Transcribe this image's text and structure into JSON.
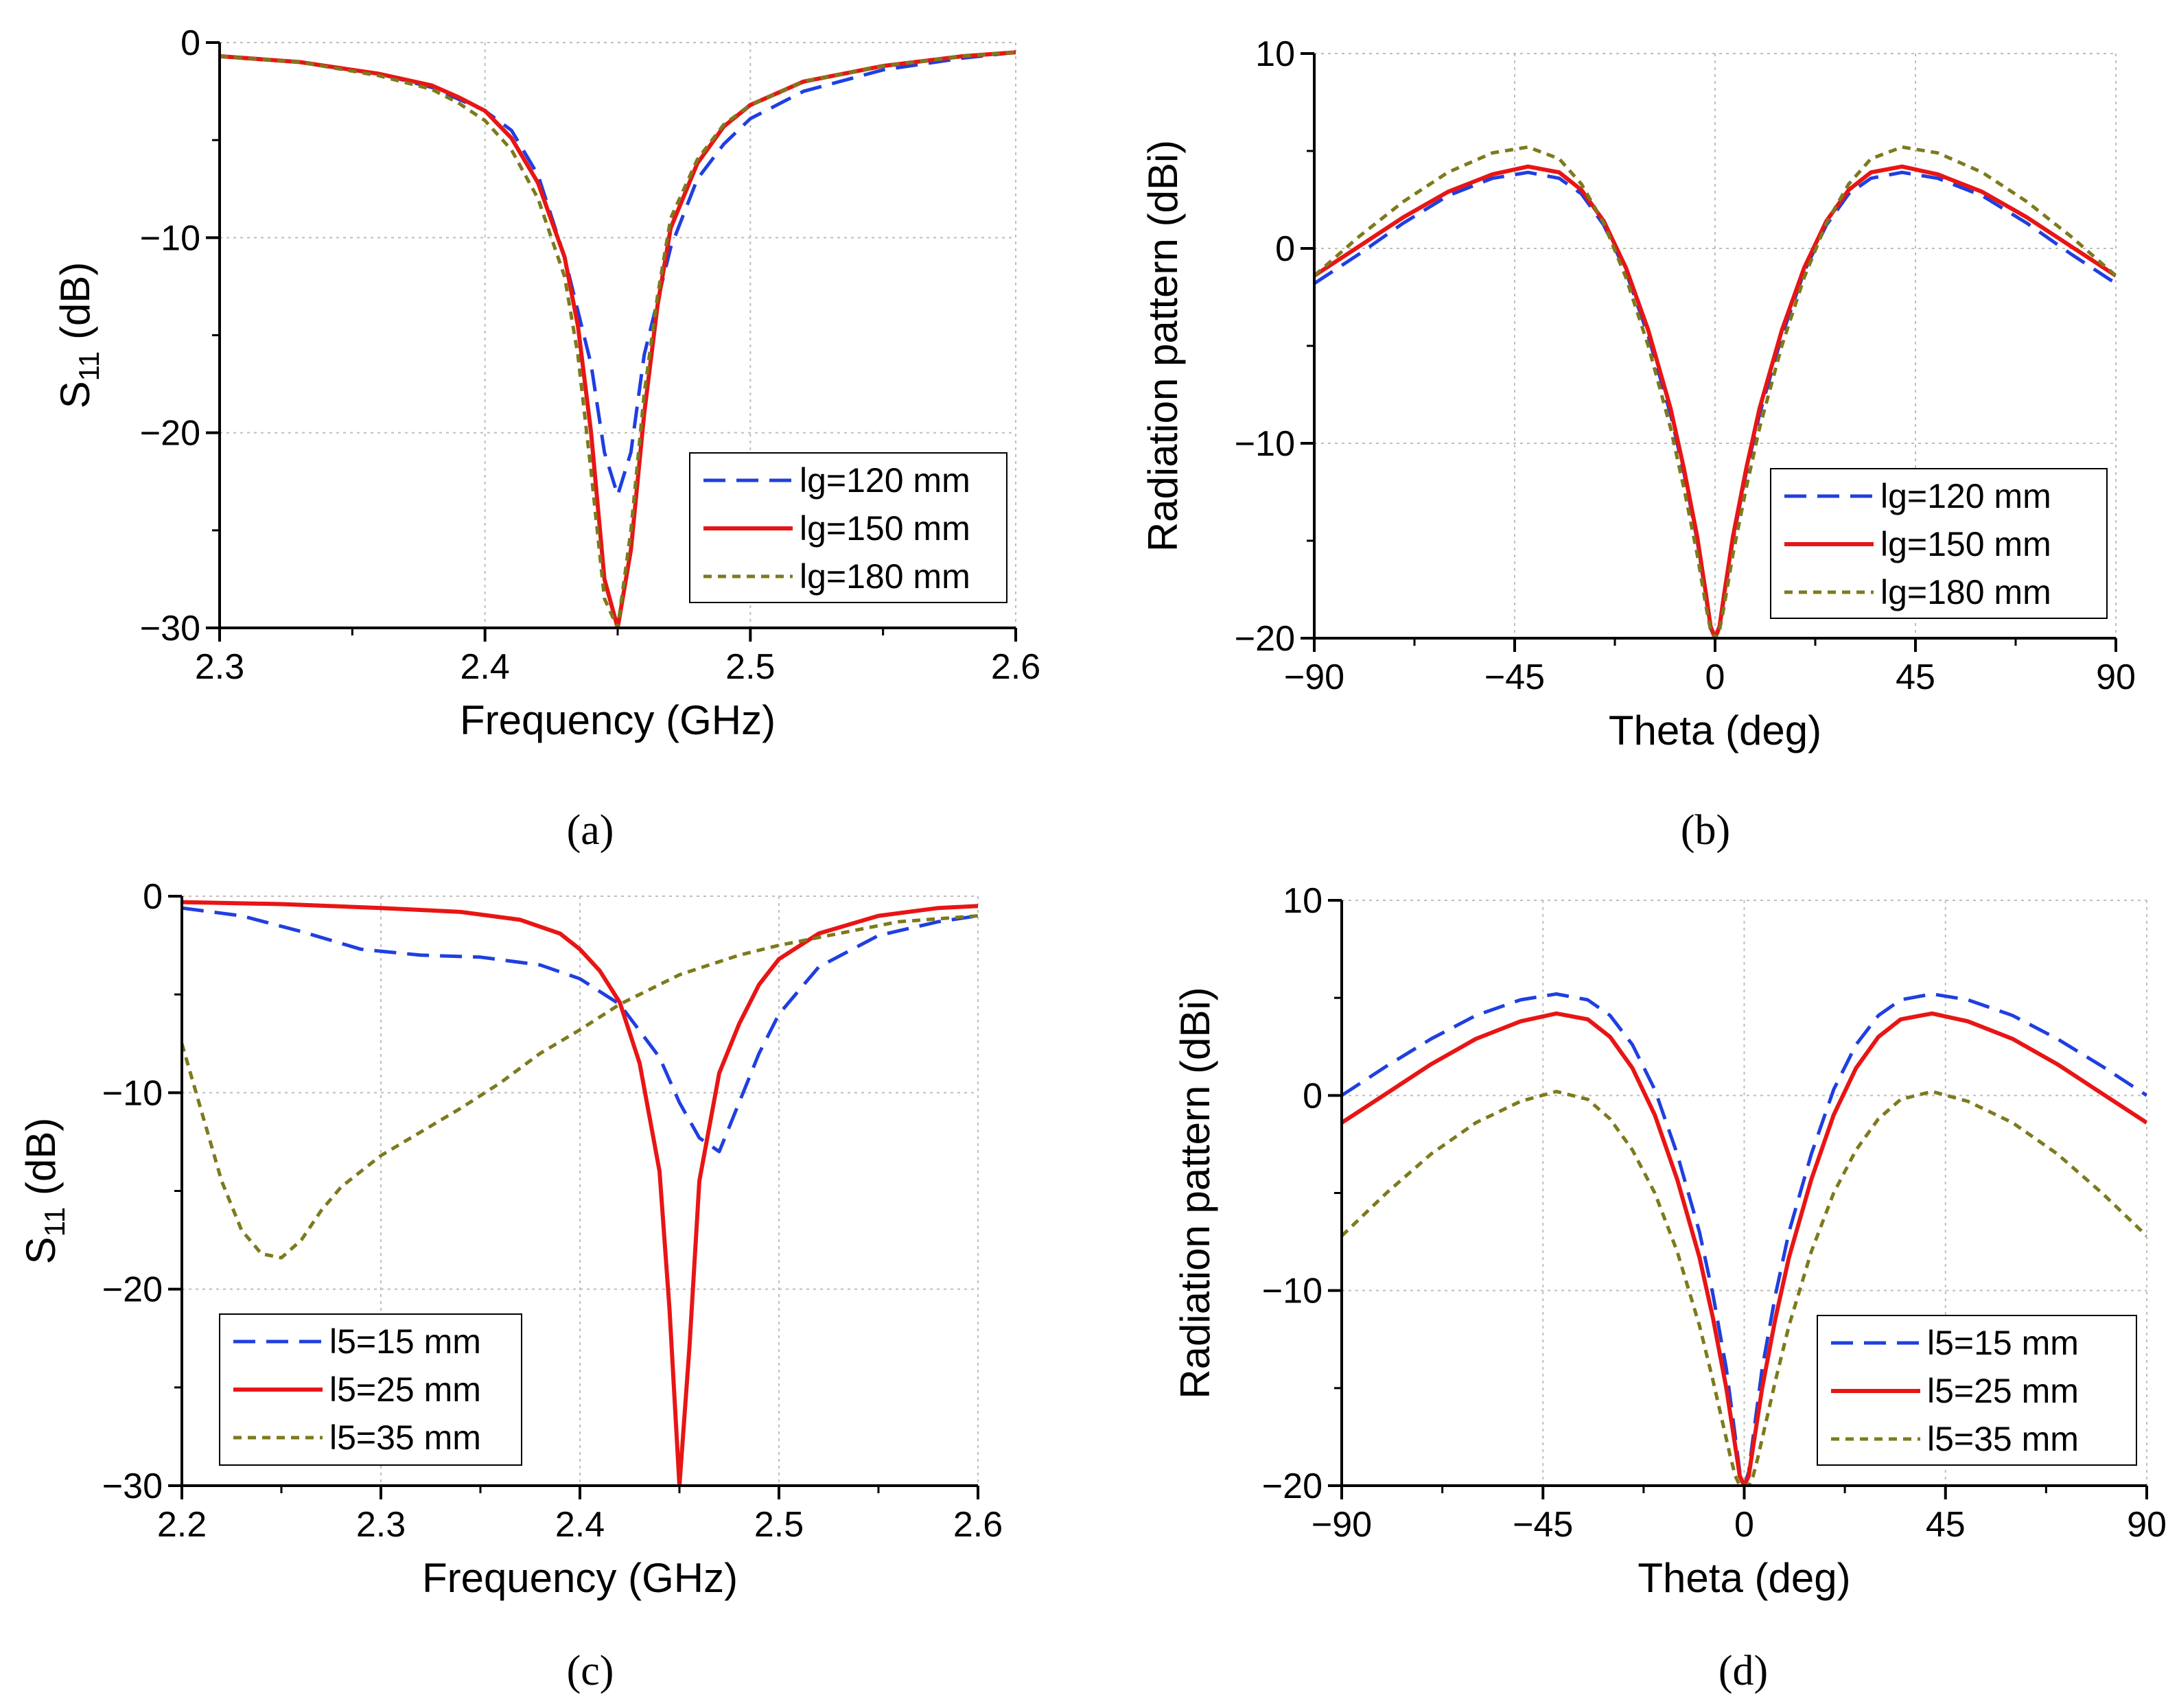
{
  "chart_data": [
    {
      "id": "a",
      "type": "line",
      "caption": "(a)",
      "xlabel": "Frequency (GHz)",
      "ylabel_main": "S",
      "ylabel_sub": "11",
      "ylabel_tail": " (dB)",
      "xlim": [
        2.3,
        2.6
      ],
      "ylim": [
        -30,
        0
      ],
      "xticks": [
        2.3,
        2.4,
        2.5,
        2.6
      ],
      "xtick_labels": [
        "2.3",
        "2.4",
        "2.5",
        "2.6"
      ],
      "yticks": [
        -30,
        -20,
        -10,
        0
      ],
      "ytick_labels": [
        "−30",
        "−20",
        "−10",
        "0"
      ],
      "grid": true,
      "legend_position": "bottom-right",
      "series": [
        {
          "name": "lg=120 mm",
          "color": "#1f3fe0",
          "dash": "dashed",
          "x": [
            2.3,
            2.33,
            2.36,
            2.38,
            2.39,
            2.4,
            2.41,
            2.42,
            2.43,
            2.44,
            2.445,
            2.45,
            2.455,
            2.46,
            2.47,
            2.48,
            2.49,
            2.5,
            2.52,
            2.55,
            2.58,
            2.6
          ],
          "y": [
            -0.7,
            -1.0,
            -1.6,
            -2.3,
            -2.9,
            -3.5,
            -4.5,
            -6.8,
            -11.0,
            -16.5,
            -21.0,
            -23.2,
            -21.0,
            -16.0,
            -10.5,
            -7.0,
            -5.2,
            -3.9,
            -2.5,
            -1.4,
            -0.8,
            -0.5
          ]
        },
        {
          "name": "lg=150 mm",
          "color": "#e81515",
          "dash": "solid",
          "x": [
            2.3,
            2.33,
            2.36,
            2.38,
            2.39,
            2.4,
            2.41,
            2.42,
            2.43,
            2.435,
            2.44,
            2.445,
            2.45,
            2.455,
            2.46,
            2.465,
            2.47,
            2.48,
            2.49,
            2.5,
            2.52,
            2.55,
            2.58,
            2.6
          ],
          "y": [
            -0.7,
            -1.0,
            -1.6,
            -2.2,
            -2.8,
            -3.5,
            -4.9,
            -7.2,
            -11.0,
            -14.5,
            -20.0,
            -27.5,
            -30.0,
            -26.0,
            -19.0,
            -13.5,
            -9.5,
            -6.2,
            -4.3,
            -3.2,
            -2.0,
            -1.2,
            -0.7,
            -0.5
          ]
        },
        {
          "name": "lg=180 mm",
          "color": "#7d7a1c",
          "dash": "dotted",
          "x": [
            2.3,
            2.33,
            2.36,
            2.38,
            2.39,
            2.4,
            2.41,
            2.42,
            2.43,
            2.435,
            2.44,
            2.445,
            2.45,
            2.455,
            2.46,
            2.465,
            2.47,
            2.48,
            2.49,
            2.5,
            2.52,
            2.55,
            2.58,
            2.6
          ],
          "y": [
            -0.7,
            -1.0,
            -1.7,
            -2.4,
            -3.1,
            -4.0,
            -5.5,
            -8.0,
            -12.0,
            -16.0,
            -22.0,
            -28.5,
            -30.0,
            -25.0,
            -18.0,
            -13.0,
            -9.0,
            -6.0,
            -4.2,
            -3.2,
            -2.0,
            -1.2,
            -0.7,
            -0.5
          ]
        }
      ],
      "legend": [
        "lg=120 mm",
        "lg=150 mm",
        "lg=180 mm"
      ]
    },
    {
      "id": "b",
      "type": "line",
      "caption": "(b)",
      "xlabel": "Theta (deg)",
      "ylabel": "Radiation pattern (dBi)",
      "xlim": [
        -90,
        90
      ],
      "ylim": [
        -20,
        10
      ],
      "xticks": [
        -90,
        -45,
        0,
        45,
        90
      ],
      "xtick_labels": [
        "−90",
        "−45",
        "0",
        "45",
        "90"
      ],
      "yticks": [
        -20,
        -10,
        0,
        10
      ],
      "ytick_labels": [
        "−20",
        "−10",
        "0",
        "10"
      ],
      "grid": true,
      "legend_position": "bottom-right",
      "series": [
        {
          "name": "lg=120 mm",
          "color": "#1f3fe0",
          "dash": "dashed",
          "x": [
            -90,
            -80,
            -70,
            -60,
            -50,
            -42,
            -35,
            -30,
            -25,
            -20,
            -15,
            -10,
            -7,
            -4,
            -2,
            -1,
            0,
            1,
            2,
            4,
            7,
            10,
            15,
            20,
            25,
            30,
            35,
            42,
            50,
            60,
            70,
            80,
            90
          ],
          "y": [
            -1.8,
            -0.3,
            1.3,
            2.7,
            3.6,
            3.9,
            3.6,
            2.8,
            1.2,
            -1.2,
            -4.5,
            -8.5,
            -11.5,
            -15.0,
            -18.0,
            -19.5,
            -20.0,
            -19.5,
            -18.0,
            -15.0,
            -11.5,
            -8.5,
            -4.5,
            -1.2,
            1.2,
            2.8,
            3.6,
            3.9,
            3.6,
            2.7,
            1.3,
            -0.3,
            -1.8
          ]
        },
        {
          "name": "lg=150 mm",
          "color": "#e81515",
          "dash": "solid",
          "x": [
            -90,
            -80,
            -70,
            -60,
            -50,
            -42,
            -35,
            -30,
            -25,
            -20,
            -15,
            -10,
            -7,
            -4,
            -2,
            -1,
            0,
            1,
            2,
            4,
            7,
            10,
            15,
            20,
            25,
            30,
            35,
            42,
            50,
            60,
            70,
            80,
            90
          ],
          "y": [
            -1.4,
            0.1,
            1.6,
            2.9,
            3.8,
            4.2,
            3.9,
            3.0,
            1.4,
            -1.0,
            -4.2,
            -8.2,
            -11.3,
            -14.8,
            -17.8,
            -19.4,
            -20.0,
            -19.4,
            -17.8,
            -14.8,
            -11.3,
            -8.2,
            -4.2,
            -1.0,
            1.4,
            3.0,
            3.9,
            4.2,
            3.8,
            2.9,
            1.6,
            0.1,
            -1.4
          ]
        },
        {
          "name": "lg=180 mm",
          "color": "#7d7a1c",
          "dash": "dotted",
          "x": [
            -90,
            -80,
            -70,
            -60,
            -50,
            -42,
            -35,
            -30,
            -25,
            -20,
            -15,
            -10,
            -7,
            -4,
            -2,
            -1,
            0,
            1,
            2,
            4,
            7,
            10,
            15,
            20,
            25,
            30,
            35,
            42,
            50,
            60,
            70,
            80,
            90
          ],
          "y": [
            -1.4,
            0.6,
            2.4,
            3.9,
            4.9,
            5.2,
            4.6,
            3.3,
            1.3,
            -1.5,
            -5.0,
            -9.2,
            -12.3,
            -15.7,
            -18.4,
            -19.6,
            -20.0,
            -19.6,
            -18.4,
            -15.7,
            -12.3,
            -9.2,
            -5.0,
            -1.5,
            1.3,
            3.3,
            4.6,
            5.2,
            4.9,
            3.9,
            2.4,
            0.6,
            -1.4
          ]
        }
      ],
      "legend": [
        "lg=120 mm",
        "lg=150 mm",
        "lg=180 mm"
      ]
    },
    {
      "id": "c",
      "type": "line",
      "caption": "(c)",
      "xlabel": "Frequency (GHz)",
      "ylabel_main": "S",
      "ylabel_sub": "11",
      "ylabel_tail": " (dB)",
      "xlim": [
        2.2,
        2.6
      ],
      "ylim": [
        -30,
        0
      ],
      "xticks": [
        2.2,
        2.3,
        2.4,
        2.5,
        2.6
      ],
      "xtick_labels": [
        "2.2",
        "2.3",
        "2.4",
        "2.5",
        "2.6"
      ],
      "yticks": [
        -30,
        -20,
        -10,
        0
      ],
      "ytick_labels": [
        "−30",
        "−20",
        "−10",
        "0"
      ],
      "grid": true,
      "legend_position": "bottom-left",
      "series": [
        {
          "name": "l5=15 mm",
          "color": "#1f3fe0",
          "dash": "dashed",
          "x": [
            2.2,
            2.23,
            2.26,
            2.29,
            2.32,
            2.35,
            2.38,
            2.4,
            2.42,
            2.44,
            2.45,
            2.46,
            2.47,
            2.48,
            2.49,
            2.5,
            2.52,
            2.55,
            2.58,
            2.6
          ],
          "y": [
            -0.6,
            -1.0,
            -1.8,
            -2.7,
            -3.0,
            -3.1,
            -3.5,
            -4.2,
            -5.5,
            -8.2,
            -10.5,
            -12.3,
            -13.0,
            -10.5,
            -8.0,
            -6.0,
            -3.6,
            -2.0,
            -1.3,
            -1.0
          ]
        },
        {
          "name": "l5=25 mm",
          "color": "#e81515",
          "dash": "solid",
          "x": [
            2.2,
            2.25,
            2.3,
            2.34,
            2.37,
            2.39,
            2.4,
            2.41,
            2.42,
            2.43,
            2.44,
            2.445,
            2.45,
            2.455,
            2.46,
            2.47,
            2.48,
            2.49,
            2.5,
            2.52,
            2.55,
            2.58,
            2.6
          ],
          "y": [
            -0.3,
            -0.4,
            -0.6,
            -0.8,
            -1.2,
            -1.9,
            -2.7,
            -3.8,
            -5.4,
            -8.5,
            -14.0,
            -21.0,
            -30.0,
            -23.0,
            -14.5,
            -9.0,
            -6.5,
            -4.5,
            -3.2,
            -1.9,
            -1.0,
            -0.6,
            -0.5
          ]
        },
        {
          "name": "l5=35 mm",
          "color": "#7d7a1c",
          "dash": "dotted",
          "x": [
            2.2,
            2.21,
            2.22,
            2.23,
            2.24,
            2.25,
            2.26,
            2.27,
            2.28,
            2.3,
            2.32,
            2.34,
            2.36,
            2.38,
            2.4,
            2.42,
            2.45,
            2.48,
            2.5,
            2.53,
            2.56,
            2.6
          ],
          "y": [
            -7.5,
            -11.0,
            -14.5,
            -17.0,
            -18.2,
            -18.4,
            -17.5,
            -16.0,
            -14.8,
            -13.2,
            -12.0,
            -10.8,
            -9.5,
            -8.0,
            -6.8,
            -5.5,
            -4.0,
            -3.0,
            -2.5,
            -1.9,
            -1.3,
            -1.0
          ]
        }
      ],
      "legend": [
        "l5=15 mm",
        "l5=25 mm",
        "l5=35 mm"
      ]
    },
    {
      "id": "d",
      "type": "line",
      "caption": "(d)",
      "xlabel": "Theta (deg)",
      "ylabel": "Radiation pattern (dBi)",
      "xlim": [
        -90,
        90
      ],
      "ylim": [
        -20,
        10
      ],
      "xticks": [
        -90,
        -45,
        0,
        45,
        90
      ],
      "xtick_labels": [
        "−90",
        "−45",
        "0",
        "45",
        "90"
      ],
      "yticks": [
        -20,
        -10,
        0,
        10
      ],
      "ytick_labels": [
        "−20",
        "−10",
        "0",
        "10"
      ],
      "grid": true,
      "legend_position": "bottom-right",
      "series": [
        {
          "name": "l5=15 mm",
          "color": "#1f3fe0",
          "dash": "dashed",
          "x": [
            -90,
            -80,
            -70,
            -60,
            -50,
            -42,
            -35,
            -30,
            -25,
            -20,
            -15,
            -10,
            -7,
            -4,
            -2,
            -1,
            0,
            1,
            2,
            4,
            7,
            10,
            15,
            20,
            25,
            30,
            35,
            42,
            50,
            60,
            70,
            80,
            90
          ],
          "y": [
            0.0,
            1.5,
            2.9,
            4.1,
            4.9,
            5.2,
            4.9,
            4.1,
            2.6,
            0.3,
            -3.0,
            -7.0,
            -10.2,
            -14.0,
            -17.5,
            -19.3,
            -20.0,
            -19.3,
            -17.5,
            -14.0,
            -10.2,
            -7.0,
            -3.0,
            0.3,
            2.6,
            4.1,
            4.9,
            5.2,
            4.9,
            4.1,
            2.9,
            1.5,
            0.0
          ]
        },
        {
          "name": "l5=25 mm",
          "color": "#e81515",
          "dash": "solid",
          "x": [
            -90,
            -80,
            -70,
            -60,
            -50,
            -42,
            -35,
            -30,
            -25,
            -20,
            -15,
            -10,
            -7,
            -4,
            -2,
            -1,
            0,
            1,
            2,
            4,
            7,
            10,
            15,
            20,
            25,
            30,
            35,
            42,
            50,
            60,
            70,
            80,
            90
          ],
          "y": [
            -1.4,
            0.1,
            1.6,
            2.9,
            3.8,
            4.2,
            3.9,
            3.0,
            1.4,
            -1.0,
            -4.3,
            -8.3,
            -11.4,
            -15.0,
            -18.0,
            -19.5,
            -20.0,
            -19.5,
            -18.0,
            -15.0,
            -11.4,
            -8.3,
            -4.3,
            -1.0,
            1.4,
            3.0,
            3.9,
            4.2,
            3.8,
            2.9,
            1.6,
            0.1,
            -1.4
          ]
        },
        {
          "name": "l5=35 mm",
          "color": "#7d7a1c",
          "dash": "dotted",
          "x": [
            -90,
            -80,
            -70,
            -60,
            -50,
            -42,
            -35,
            -30,
            -25,
            -20,
            -15,
            -10,
            -7,
            -5,
            -3,
            -2,
            -1,
            0,
            1,
            2,
            3,
            5,
            7,
            10,
            15,
            20,
            25,
            30,
            35,
            42,
            50,
            60,
            70,
            80,
            90
          ],
          "y": [
            -7.2,
            -5.0,
            -3.0,
            -1.4,
            -0.3,
            0.2,
            -0.2,
            -1.2,
            -2.8,
            -5.0,
            -8.0,
            -11.8,
            -14.6,
            -16.6,
            -18.6,
            -19.5,
            -20.0,
            -20.0,
            -20.0,
            -19.5,
            -18.6,
            -16.6,
            -14.6,
            -11.8,
            -8.0,
            -5.0,
            -2.8,
            -1.2,
            -0.2,
            0.2,
            -0.3,
            -1.4,
            -3.0,
            -5.0,
            -7.2
          ]
        }
      ],
      "legend": [
        "l5=15 mm",
        "l5=25 mm",
        "l5=35 mm"
      ]
    }
  ]
}
